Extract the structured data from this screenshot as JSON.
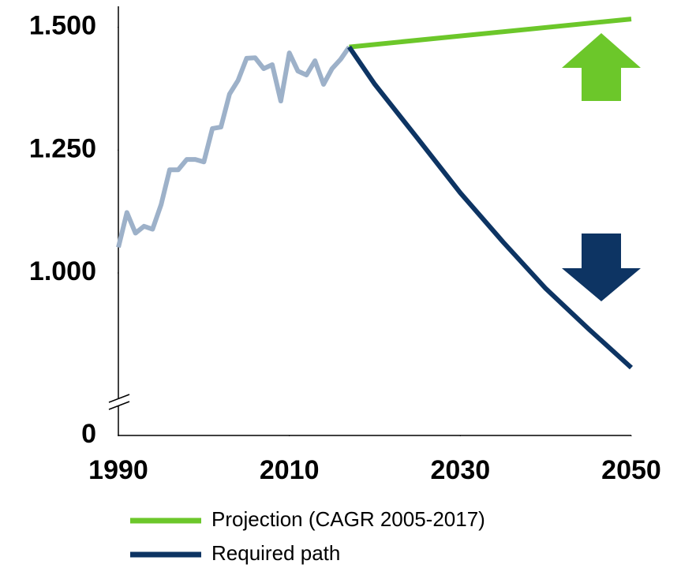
{
  "chart_data": {
    "type": "line",
    "xlim": [
      1990,
      2050
    ],
    "xticks": [
      1990,
      2010,
      2030,
      2050
    ],
    "ylim": [
      0,
      1530
    ],
    "ybreak": [
      0,
      669
    ],
    "yticks": [
      0,
      {
        "value": 1000,
        "label": "1.000"
      },
      {
        "value": 1250,
        "label": "1.250"
      },
      {
        "value": 1500,
        "label": "1.500"
      }
    ],
    "series": [
      {
        "color": "#9db1c9",
        "x": [
          1990,
          1991,
          1992,
          1993,
          1994,
          1995,
          1996,
          1997,
          1998,
          1999,
          2000,
          2001,
          2002,
          2003,
          2004,
          2005,
          2006,
          2007,
          2008,
          2009,
          2010,
          2011,
          2012,
          2013,
          2014,
          2015,
          2016,
          2017
        ],
        "values": [
          1052,
          1123,
          1081,
          1095,
          1089,
          1139,
          1210,
          1210,
          1231,
          1231,
          1226,
          1294,
          1297,
          1364,
          1392,
          1437,
          1438,
          1416,
          1424,
          1350,
          1448,
          1411,
          1403,
          1432,
          1384,
          1416,
          1435,
          1460
        ]
      },
      {
        "name": "Projection (CAGR 2005-2017)",
        "color": "#6cc72a",
        "x": [
          2017,
          2050
        ],
        "values": [
          1460,
          1517
        ]
      },
      {
        "name": "Required path",
        "color": "#0d3463",
        "x": [
          2017,
          2020,
          2025,
          2030,
          2035,
          2040,
          2045,
          2050
        ],
        "values": [
          1460,
          1384,
          1274,
          1163,
          1063,
          968,
          886,
          807
        ]
      }
    ]
  }
}
